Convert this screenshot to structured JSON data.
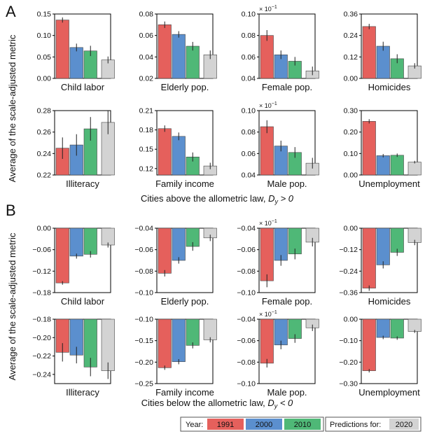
{
  "panels": [
    {
      "letter": "A",
      "xlabel": "Cities above the allometric law, ",
      "dlabel": "D",
      "dsub": "y",
      "relation": " > 0"
    },
    {
      "letter": "B",
      "xlabel": "Cities below the allometric law, ",
      "dlabel": "D",
      "dsub": "y",
      "relation": " < 0"
    }
  ],
  "ylabel": "Average of the scale-adjusted metric",
  "legend": {
    "year_label": "Year:",
    "years": [
      "1991",
      "2000",
      "2010"
    ],
    "prediction_label": "Predictions for:",
    "prediction_year": "2020"
  },
  "colors": {
    "1991": "#e5605c",
    "2000": "#5b8fce",
    "2010": "#4fb877",
    "2020": "#d3d3d3"
  },
  "chart_data": [
    {
      "type": "bar",
      "panel": "A",
      "title": "Child labor",
      "categories": [
        "1991",
        "2000",
        "2010",
        "2020"
      ],
      "values": [
        0.136,
        0.072,
        0.064,
        0.043
      ],
      "errors": [
        0.006,
        0.009,
        0.012,
        0.008
      ],
      "ylim": [
        0,
        0.15
      ],
      "yticks": [
        "0.00",
        "0.05",
        "0.10",
        "0.15"
      ],
      "scale_note": ""
    },
    {
      "type": "bar",
      "panel": "A",
      "title": "Elderly pop.",
      "categories": [
        "1991",
        "2000",
        "2010",
        "2020"
      ],
      "values": [
        0.07,
        0.061,
        0.05,
        0.042
      ],
      "errors": [
        0.003,
        0.003,
        0.004,
        0.004
      ],
      "ylim": [
        0.02,
        0.08
      ],
      "yticks": [
        "0.02",
        "0.04",
        "0.06",
        "0.08"
      ],
      "scale_note": ""
    },
    {
      "type": "bar",
      "panel": "A",
      "title": "Female pop.",
      "categories": [
        "1991",
        "2000",
        "2010",
        "2020"
      ],
      "values": [
        0.08,
        0.062,
        0.056,
        0.047
      ],
      "errors": [
        0.005,
        0.004,
        0.004,
        0.004
      ],
      "ylim": [
        0.04,
        0.1
      ],
      "yticks": [
        "0.04",
        "0.06",
        "0.08",
        "0.10"
      ],
      "scale_note": "× 10",
      "scale_exp": "−1"
    },
    {
      "type": "bar",
      "panel": "A",
      "title": "Homicides",
      "categories": [
        "1991",
        "2000",
        "2010",
        "2020"
      ],
      "values": [
        0.29,
        0.18,
        0.11,
        0.07
      ],
      "errors": [
        0.015,
        0.025,
        0.025,
        0.015
      ],
      "ylim": [
        0,
        0.36
      ],
      "yticks": [
        "0.00",
        "0.12",
        "0.24",
        "0.36"
      ],
      "scale_note": ""
    },
    {
      "type": "bar",
      "panel": "A",
      "title": "Illiteracy",
      "categories": [
        "1991",
        "2000",
        "2010",
        "2020"
      ],
      "values": [
        0.245,
        0.248,
        0.263,
        0.269
      ],
      "errors": [
        0.01,
        0.01,
        0.011,
        0.011
      ],
      "ylim": [
        0.22,
        0.28
      ],
      "yticks": [
        "0.22",
        "0.24",
        "0.26",
        "0.28"
      ],
      "scale_note": ""
    },
    {
      "type": "bar",
      "panel": "A",
      "title": "Family income",
      "categories": [
        "1991",
        "2000",
        "2010",
        "2020"
      ],
      "values": [
        0.182,
        0.17,
        0.138,
        0.124
      ],
      "errors": [
        0.005,
        0.006,
        0.007,
        0.005
      ],
      "ylim": [
        0.11,
        0.21
      ],
      "yticks": [
        "0.12",
        "0.15",
        "0.18",
        "0.21"
      ],
      "scale_note": ""
    },
    {
      "type": "bar",
      "panel": "A",
      "title": "Male pop.",
      "categories": [
        "1991",
        "2000",
        "2010",
        "2020"
      ],
      "values": [
        0.085,
        0.067,
        0.061,
        0.051
      ],
      "errors": [
        0.006,
        0.005,
        0.005,
        0.005
      ],
      "ylim": [
        0.04,
        0.1
      ],
      "yticks": [
        "0.04",
        "0.06",
        "0.08",
        "0.10"
      ],
      "scale_note": "× 10",
      "scale_exp": "−1"
    },
    {
      "type": "bar",
      "panel": "A",
      "title": "Unemployment",
      "categories": [
        "1991",
        "2000",
        "2010",
        "2020"
      ],
      "values": [
        0.25,
        0.09,
        0.092,
        0.06
      ],
      "errors": [
        0.01,
        0.008,
        0.008,
        0.006
      ],
      "ylim": [
        0,
        0.3
      ],
      "yticks": [
        "0.00",
        "0.10",
        "0.20",
        "0.30"
      ],
      "scale_note": ""
    },
    {
      "type": "bar",
      "panel": "B",
      "title": "Child labor",
      "categories": [
        "1991",
        "2000",
        "2010",
        "2020"
      ],
      "values": [
        -0.153,
        -0.078,
        -0.073,
        -0.047
      ],
      "errors": [
        0.005,
        0.007,
        0.009,
        0.007
      ],
      "ylim": [
        -0.18,
        0
      ],
      "yticks": [
        "0.00",
        "−0.06",
        "−0.12",
        "−0.18"
      ],
      "scale_note": ""
    },
    {
      "type": "bar",
      "panel": "B",
      "title": "Elderly pop.",
      "categories": [
        "1991",
        "2000",
        "2010",
        "2020"
      ],
      "values": [
        -0.082,
        -0.07,
        -0.057,
        -0.049
      ],
      "errors": [
        0.003,
        0.003,
        0.004,
        0.003
      ],
      "ylim": [
        -0.1,
        -0.04
      ],
      "yticks": [
        "−0.04",
        "−0.06",
        "−0.08",
        "−0.10"
      ],
      "scale_note": ""
    },
    {
      "type": "bar",
      "panel": "B",
      "title": "Female pop.",
      "categories": [
        "1991",
        "2000",
        "2010",
        "2020"
      ],
      "values": [
        -0.089,
        -0.07,
        -0.064,
        -0.053
      ],
      "errors": [
        0.006,
        0.005,
        0.005,
        0.004
      ],
      "ylim": [
        -0.1,
        -0.04
      ],
      "yticks": [
        "−0.04",
        "−0.06",
        "−0.08",
        "−0.10"
      ],
      "scale_note": "× 10",
      "scale_exp": "−1"
    },
    {
      "type": "bar",
      "panel": "B",
      "title": "Homicides",
      "categories": [
        "1991",
        "2000",
        "2010",
        "2020"
      ],
      "values": [
        -0.335,
        -0.205,
        -0.135,
        -0.08
      ],
      "errors": [
        0.015,
        0.02,
        0.02,
        0.015
      ],
      "ylim": [
        -0.36,
        0
      ],
      "yticks": [
        "0.00",
        "−0.12",
        "−0.24",
        "−0.36"
      ],
      "scale_note": ""
    },
    {
      "type": "bar",
      "panel": "B",
      "title": "Illiteracy",
      "categories": [
        "1991",
        "2000",
        "2010",
        "2020"
      ],
      "values": [
        -0.216,
        -0.219,
        -0.232,
        -0.236
      ],
      "errors": [
        0.01,
        0.009,
        0.01,
        0.009
      ],
      "ylim": [
        -0.25,
        -0.18
      ],
      "yticks": [
        "−0.18",
        "−0.20",
        "−0.22",
        "−0.24"
      ],
      "scale_note": ""
    },
    {
      "type": "bar",
      "panel": "B",
      "title": "Family income",
      "categories": [
        "1991",
        "2000",
        "2010",
        "2020"
      ],
      "values": [
        -0.213,
        -0.199,
        -0.161,
        -0.148
      ],
      "errors": [
        0.005,
        0.006,
        0.007,
        0.006
      ],
      "ylim": [
        -0.25,
        -0.1
      ],
      "yticks": [
        "−0.10",
        "−0.15",
        "−0.20",
        "−0.25"
      ],
      "scale_note": ""
    },
    {
      "type": "bar",
      "panel": "B",
      "title": "Male pop.",
      "categories": [
        "1991",
        "2000",
        "2010",
        "2020"
      ],
      "values": [
        -0.081,
        -0.064,
        -0.058,
        -0.048
      ],
      "errors": [
        0.004,
        0.004,
        0.004,
        0.003
      ],
      "ylim": [
        -0.1,
        -0.04
      ],
      "yticks": [
        "−0.04",
        "−0.06",
        "−0.08",
        "−0.10"
      ],
      "scale_note": "× 10",
      "scale_exp": "−1"
    },
    {
      "type": "bar",
      "panel": "B",
      "title": "Unemployment",
      "categories": [
        "1991",
        "2000",
        "2010",
        "2020"
      ],
      "values": [
        -0.24,
        -0.085,
        -0.088,
        -0.057
      ],
      "errors": [
        0.008,
        0.008,
        0.008,
        0.007
      ],
      "ylim": [
        -0.3,
        0
      ],
      "yticks": [
        "0.00",
        "−0.10",
        "−0.20",
        "−0.30"
      ],
      "scale_note": ""
    }
  ]
}
